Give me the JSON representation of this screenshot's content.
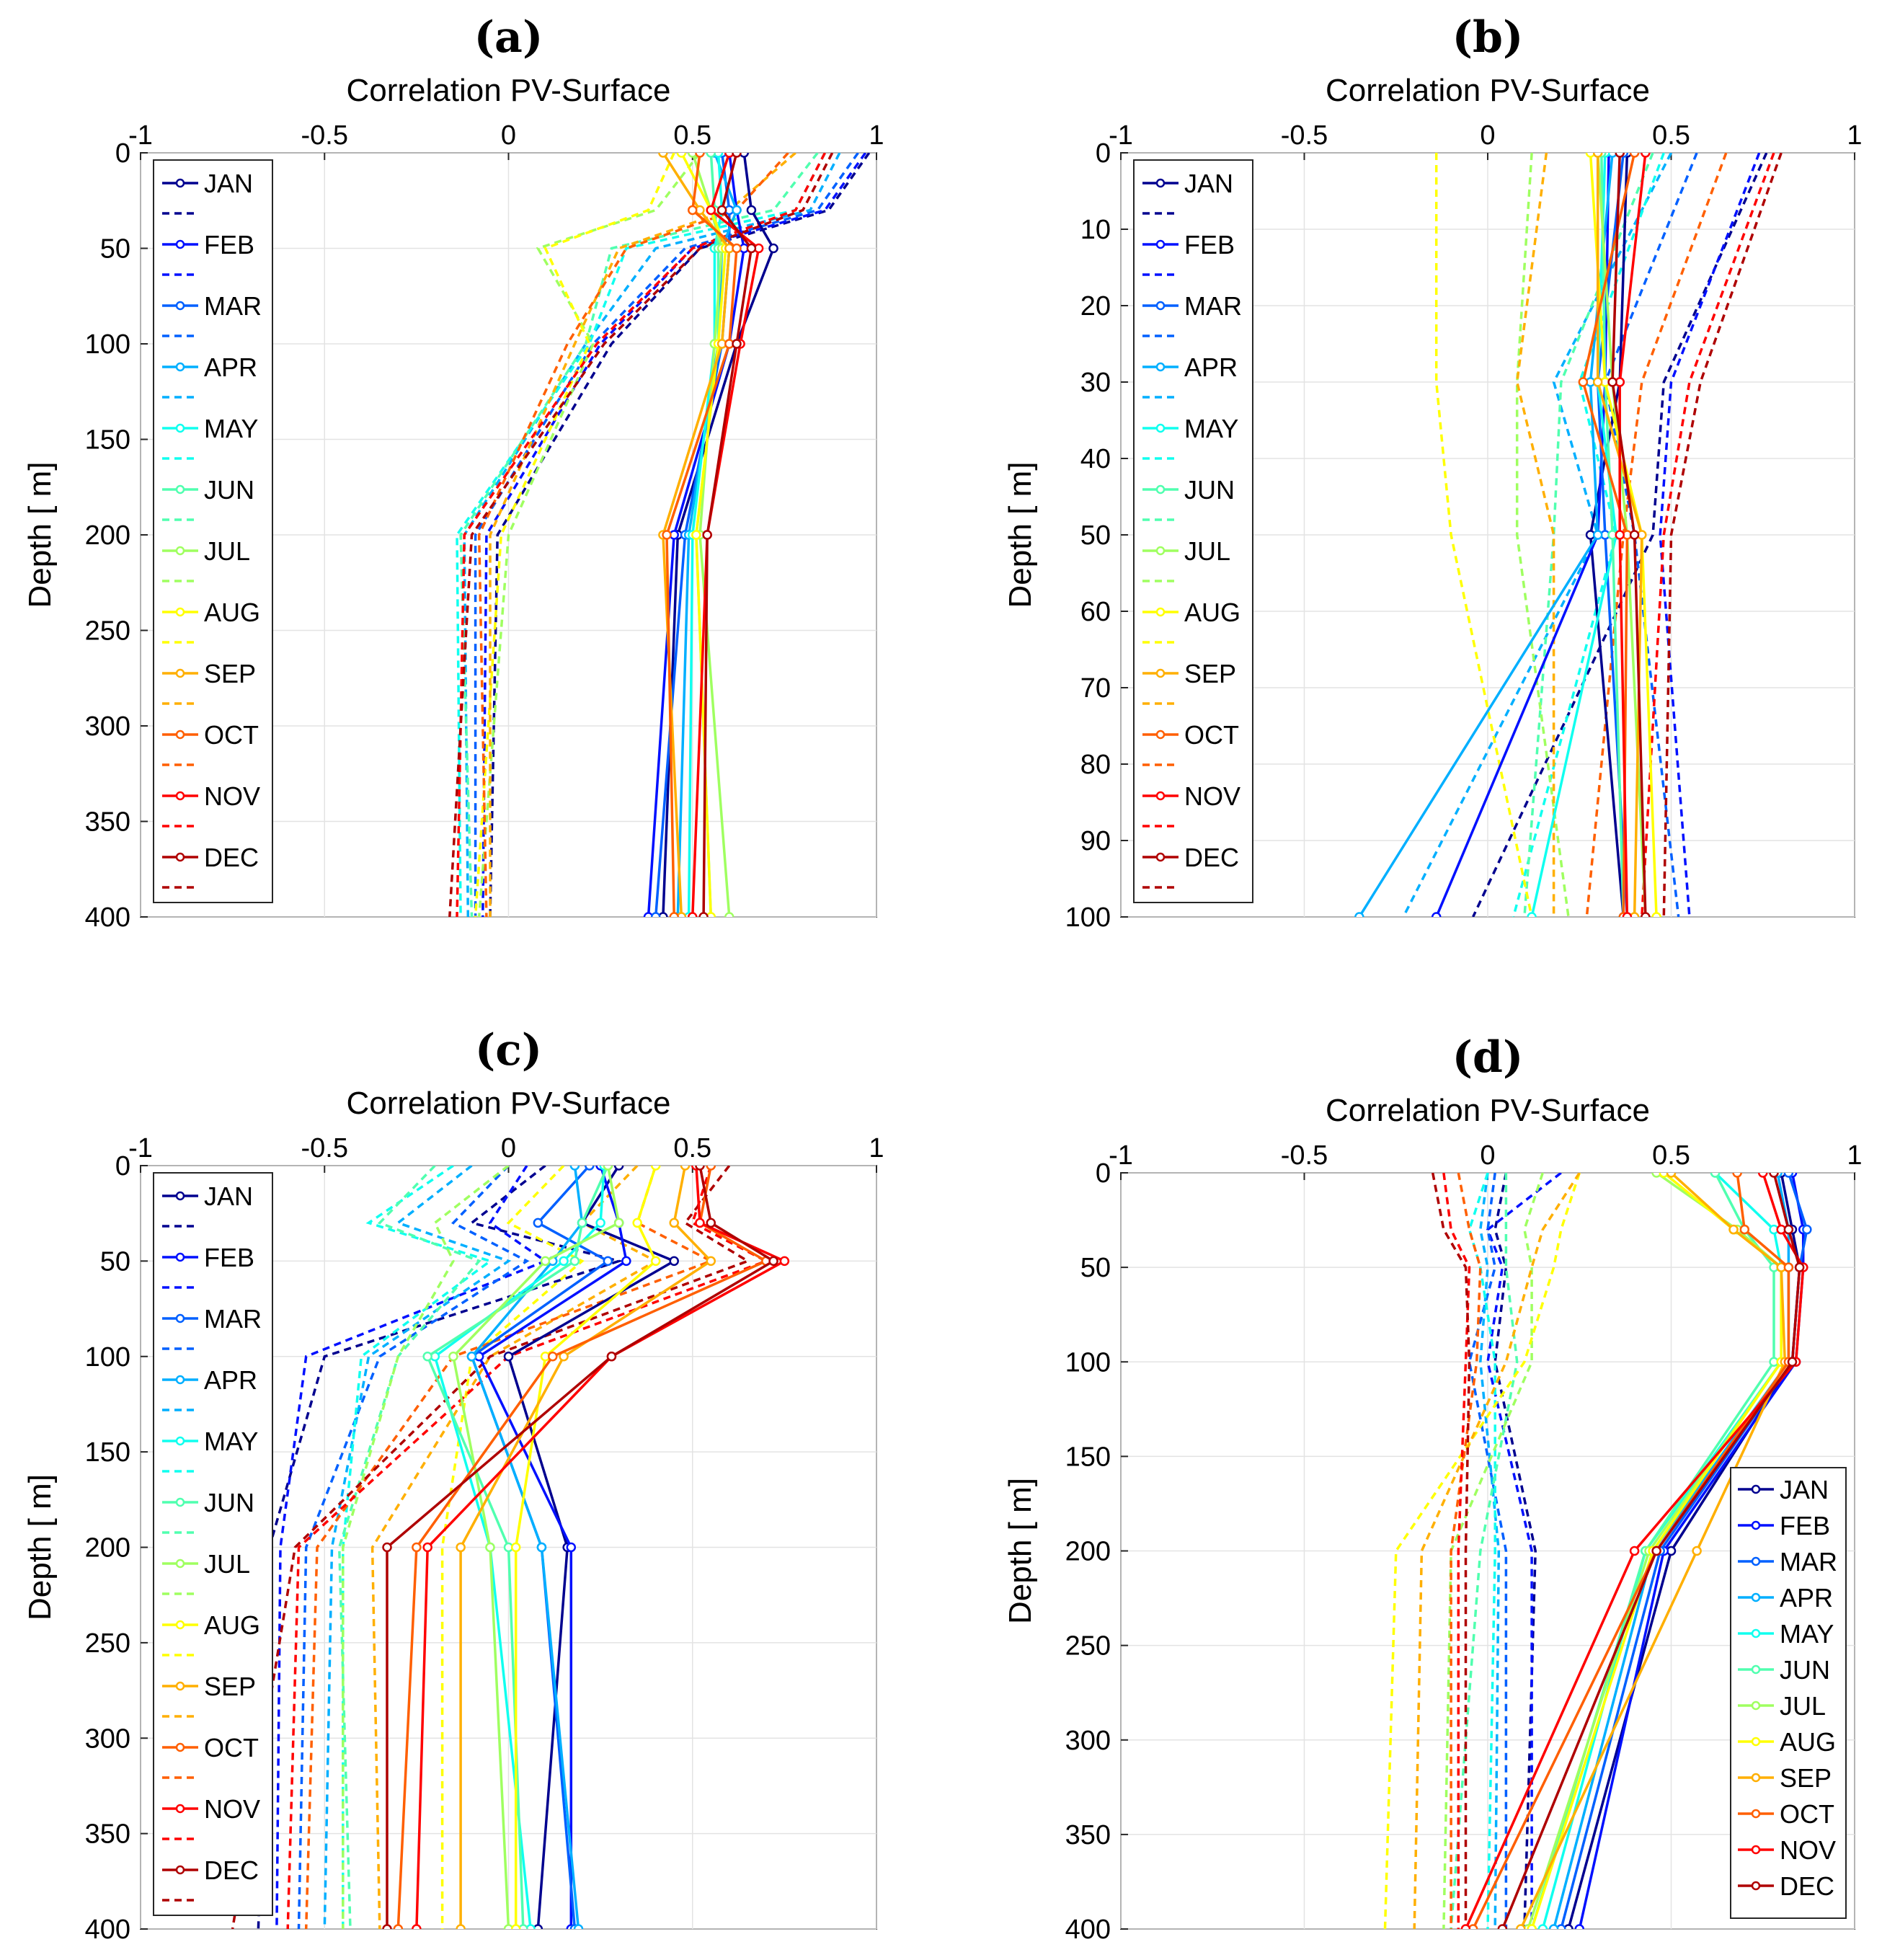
{
  "figure": {
    "colors": {
      "JAN": "#00008f",
      "FEB": "#0010ff",
      "MAR": "#0060ff",
      "APR": "#00afff",
      "MAY": "#10ffef",
      "JUN": "#50ffaf",
      "JUL": "#9fff60",
      "AUG": "#ffff00",
      "SEP": "#ffaf00",
      "OCT": "#ff5f00",
      "NOV": "#ff0000",
      "DEC": "#af0000"
    }
  },
  "chart_data": [
    {
      "panel": "(a)",
      "type": "line",
      "xlabel": "Correlation PV-Surface",
      "ylabel": "Depth [ m]",
      "xlim": [
        -1,
        1
      ],
      "ylim": [
        400,
        0
      ],
      "y_inverted": true,
      "x_axis_position": "top",
      "xticks": [
        "-1",
        "-0.5",
        "0",
        "0.5",
        "1"
      ],
      "yticks": [
        "0",
        "50",
        "100",
        "150",
        "200",
        "250",
        "300",
        "350",
        "400"
      ],
      "grid": true,
      "legend": {
        "position": "left-inside",
        "style": "alternating-solid-dashed",
        "entries": [
          "JAN",
          "FEB",
          "MAR",
          "APR",
          "MAY",
          "JUN",
          "JUL",
          "AUG",
          "SEP",
          "OCT",
          "NOV",
          "DEC"
        ]
      },
      "depths": [
        0,
        30,
        50,
        100,
        200,
        400
      ],
      "series": [
        {
          "name": "JAN",
          "solid": [
            0.64,
            0.66,
            0.72,
            0.62,
            0.46,
            0.42
          ],
          "dashed": [
            0.98,
            0.87,
            0.52,
            0.28,
            -0.03,
            -0.05
          ]
        },
        {
          "name": "FEB",
          "solid": [
            0.6,
            0.62,
            0.64,
            0.6,
            0.45,
            0.38
          ],
          "dashed": [
            0.97,
            0.86,
            0.5,
            0.25,
            -0.06,
            -0.07
          ]
        },
        {
          "name": "MAR",
          "solid": [
            0.58,
            0.6,
            0.6,
            0.58,
            0.48,
            0.4
          ],
          "dashed": [
            0.95,
            0.84,
            0.48,
            0.23,
            -0.09,
            -0.09
          ]
        },
        {
          "name": "APR",
          "solid": [
            0.56,
            0.62,
            0.58,
            0.57,
            0.49,
            0.46
          ],
          "dashed": [
            0.9,
            0.82,
            0.4,
            0.21,
            -0.12,
            -0.11
          ]
        },
        {
          "name": "MAY",
          "solid": [
            0.57,
            0.58,
            0.56,
            0.56,
            0.5,
            0.49
          ],
          "dashed": [
            0.86,
            0.78,
            0.32,
            0.22,
            -0.14,
            -0.13
          ]
        },
        {
          "name": "JUN",
          "solid": [
            0.55,
            0.56,
            0.57,
            0.57,
            0.51,
            0.55
          ],
          "dashed": [
            0.84,
            0.72,
            0.28,
            0.21,
            -0.13,
            -0.1
          ]
        },
        {
          "name": "JUL",
          "solid": [
            0.5,
            0.55,
            0.58,
            0.56,
            0.52,
            0.6
          ],
          "dashed": [
            0.52,
            0.4,
            0.08,
            0.23,
            0.0,
            -0.08
          ]
        },
        {
          "name": "AUG",
          "solid": [
            0.47,
            0.55,
            0.59,
            0.57,
            0.51,
            0.55
          ],
          "dashed": [
            0.45,
            0.38,
            0.1,
            0.22,
            -0.02,
            -0.09
          ]
        },
        {
          "name": "SEP",
          "solid": [
            0.42,
            0.52,
            0.6,
            0.58,
            0.42,
            0.47
          ],
          "dashed": [
            0.78,
            0.6,
            0.3,
            0.18,
            -0.05,
            -0.05
          ]
        },
        {
          "name": "OCT",
          "solid": [
            0.52,
            0.5,
            0.62,
            0.6,
            0.43,
            0.45
          ],
          "dashed": [
            0.76,
            0.62,
            0.32,
            0.16,
            -0.08,
            -0.06
          ]
        },
        {
          "name": "NOV",
          "solid": [
            0.6,
            0.55,
            0.68,
            0.63,
            0.54,
            0.5
          ],
          "dashed": [
            0.86,
            0.78,
            0.5,
            0.24,
            -0.12,
            -0.14
          ]
        },
        {
          "name": "DEC",
          "solid": [
            0.62,
            0.58,
            0.66,
            0.62,
            0.54,
            0.53
          ],
          "dashed": [
            0.88,
            0.8,
            0.52,
            0.26,
            -0.1,
            -0.16
          ]
        }
      ]
    },
    {
      "panel": "(b)",
      "type": "line",
      "xlabel": "Correlation PV-Surface",
      "ylabel": "Depth [ m]",
      "xlim": [
        -1,
        1
      ],
      "ylim": [
        100,
        0
      ],
      "y_inverted": true,
      "x_axis_position": "top",
      "xticks": [
        "-1",
        "-0.5",
        "0",
        "0.5",
        "1"
      ],
      "yticks": [
        "0",
        "10",
        "20",
        "30",
        "40",
        "50",
        "60",
        "70",
        "80",
        "90",
        "100"
      ],
      "grid": true,
      "legend": {
        "position": "left-inside",
        "style": "alternating-solid-dashed",
        "entries": [
          "JAN",
          "FEB",
          "MAR",
          "APR",
          "MAY",
          "JUN",
          "JUL",
          "AUG",
          "SEP",
          "OCT",
          "NOV",
          "DEC"
        ]
      },
      "depths": [
        0,
        30,
        50,
        100
      ],
      "series": [
        {
          "name": "JAN",
          "solid": [
            0.38,
            0.36,
            0.28,
            0.37
          ],
          "dashed": [
            0.76,
            0.48,
            0.45,
            -0.04
          ]
        },
        {
          "name": "FEB",
          "solid": [
            0.33,
            0.32,
            0.3,
            -0.14
          ],
          "dashed": [
            0.74,
            0.5,
            0.47,
            0.55
          ]
        },
        {
          "name": "MAR",
          "solid": [
            0.37,
            0.3,
            0.32,
            0.38
          ],
          "dashed": [
            0.57,
            0.32,
            0.4,
            0.52
          ]
        },
        {
          "name": "APR",
          "solid": [
            0.34,
            0.28,
            0.3,
            -0.35
          ],
          "dashed": [
            0.5,
            0.18,
            0.3,
            -0.23
          ]
        },
        {
          "name": "MAY",
          "solid": [
            0.32,
            0.3,
            0.35,
            0.12
          ],
          "dashed": [
            0.48,
            0.25,
            0.35,
            0.07
          ]
        },
        {
          "name": "JUN",
          "solid": [
            0.31,
            0.32,
            0.34,
            0.37
          ],
          "dashed": [
            0.45,
            0.2,
            0.18,
            0.1
          ]
        },
        {
          "name": "JUL",
          "solid": [
            0.3,
            0.34,
            0.38,
            0.43
          ],
          "dashed": [
            0.12,
            0.08,
            0.08,
            0.22
          ]
        },
        {
          "name": "AUG",
          "solid": [
            0.28,
            0.32,
            0.42,
            0.46
          ],
          "dashed": [
            -0.14,
            -0.14,
            -0.1,
            0.12
          ]
        },
        {
          "name": "SEP",
          "solid": [
            0.3,
            0.3,
            0.42,
            0.4
          ],
          "dashed": [
            0.16,
            0.08,
            0.18,
            0.18
          ]
        },
        {
          "name": "OCT",
          "solid": [
            0.4,
            0.26,
            0.38,
            0.37
          ],
          "dashed": [
            0.65,
            0.42,
            0.37,
            0.27
          ]
        },
        {
          "name": "NOV",
          "solid": [
            0.43,
            0.36,
            0.36,
            0.38
          ],
          "dashed": [
            0.78,
            0.55,
            0.48,
            0.42
          ]
        },
        {
          "name": "DEC",
          "solid": [
            0.36,
            0.34,
            0.4,
            0.43
          ],
          "dashed": [
            0.8,
            0.58,
            0.5,
            0.48
          ]
        }
      ]
    },
    {
      "panel": "(c)",
      "type": "line",
      "xlabel": "Correlation PV-Surface",
      "ylabel": "Depth [ m]",
      "xlim": [
        -1,
        1
      ],
      "ylim": [
        400,
        0
      ],
      "y_inverted": true,
      "x_axis_position": "top",
      "xticks": [
        "-1",
        "-0.5",
        "0",
        "0.5",
        "1"
      ],
      "yticks": [
        "0",
        "50",
        "100",
        "150",
        "200",
        "250",
        "300",
        "350",
        "400"
      ],
      "grid": true,
      "legend": {
        "position": "left-inside",
        "style": "alternating-solid-dashed",
        "entries": [
          "JAN",
          "FEB",
          "MAR",
          "APR",
          "MAY",
          "JUN",
          "JUL",
          "AUG",
          "SEP",
          "OCT",
          "NOV",
          "DEC"
        ]
      },
      "depths": [
        0,
        30,
        50,
        100,
        200,
        400
      ],
      "series": [
        {
          "name": "JAN",
          "solid": [
            0.3,
            0.2,
            0.45,
            0.0,
            0.16,
            0.08
          ],
          "dashed": [
            0.1,
            -0.1,
            0.3,
            -0.5,
            -0.65,
            -0.68
          ]
        },
        {
          "name": "FEB",
          "solid": [
            0.25,
            0.3,
            0.32,
            -0.08,
            0.17,
            0.17
          ],
          "dashed": [
            0.05,
            -0.05,
            0.1,
            -0.55,
            -0.62,
            -0.63
          ]
        },
        {
          "name": "MAR",
          "solid": [
            0.22,
            0.08,
            0.27,
            -0.1,
            0.09,
            0.18
          ],
          "dashed": [
            0.0,
            -0.15,
            0.05,
            -0.35,
            -0.55,
            -0.57
          ]
        },
        {
          "name": "APR",
          "solid": [
            0.18,
            0.2,
            0.12,
            -0.1,
            0.09,
            0.19
          ],
          "dashed": [
            -0.1,
            -0.3,
            0.0,
            -0.38,
            -0.48,
            -0.5
          ]
        },
        {
          "name": "MAY",
          "solid": [
            0.26,
            0.25,
            0.15,
            -0.2,
            -0.05,
            0.06
          ],
          "dashed": [
            -0.15,
            -0.38,
            -0.05,
            -0.4,
            -0.45,
            -0.45
          ]
        },
        {
          "name": "JUN",
          "solid": [
            0.27,
            0.2,
            0.18,
            -0.22,
            0.0,
            0.04
          ],
          "dashed": [
            -0.2,
            -0.35,
            -0.08,
            -0.3,
            -0.46,
            -0.43
          ]
        },
        {
          "name": "JUL",
          "solid": [
            0.27,
            0.3,
            0.1,
            -0.15,
            -0.05,
            0.0
          ],
          "dashed": [
            0.0,
            -0.2,
            -0.15,
            -0.3,
            -0.45,
            -0.45
          ]
        },
        {
          "name": "AUG",
          "solid": [
            0.4,
            0.35,
            0.4,
            0.1,
            0.02,
            0.02
          ],
          "dashed": [
            0.15,
            0.0,
            0.2,
            -0.1,
            -0.18,
            -0.18
          ]
        },
        {
          "name": "SEP",
          "solid": [
            0.48,
            0.45,
            0.55,
            0.15,
            -0.13,
            -0.13
          ],
          "dashed": [
            0.35,
            0.2,
            0.4,
            -0.05,
            -0.37,
            -0.35
          ]
        },
        {
          "name": "OCT",
          "solid": [
            0.55,
            0.52,
            0.7,
            0.12,
            -0.25,
            -0.3
          ],
          "dashed": [
            0.4,
            0.35,
            0.55,
            -0.15,
            -0.52,
            -0.55
          ]
        },
        {
          "name": "NOV",
          "solid": [
            0.51,
            0.52,
            0.75,
            0.28,
            -0.22,
            -0.25
          ],
          "dashed": [
            0.55,
            0.5,
            0.7,
            0.0,
            -0.57,
            -0.6
          ]
        },
        {
          "name": "DEC",
          "solid": [
            0.52,
            0.55,
            0.72,
            0.28,
            -0.33,
            -0.33
          ],
          "dashed": [
            0.6,
            0.48,
            0.65,
            -0.05,
            -0.58,
            -0.75
          ]
        }
      ]
    },
    {
      "panel": "(d)",
      "type": "line",
      "xlabel": "Correlation PV-Surface",
      "ylabel": "Depth [ m]",
      "xlim": [
        -1,
        1
      ],
      "ylim": [
        400,
        0
      ],
      "y_inverted": true,
      "x_axis_position": "top",
      "xticks": [
        "-1",
        "-0.5",
        "0",
        "0.5",
        "1"
      ],
      "yticks": [
        "0",
        "50",
        "100",
        "150",
        "200",
        "250",
        "300",
        "350",
        "400"
      ],
      "grid": true,
      "legend": {
        "position": "bottom-right-inside",
        "style": "solid-only",
        "entries": [
          "JAN",
          "FEB",
          "MAR",
          "APR",
          "MAY",
          "JUN",
          "JUL",
          "AUG",
          "SEP",
          "OCT",
          "NOV",
          "DEC"
        ]
      },
      "depths": [
        0,
        30,
        50,
        100,
        200,
        400
      ],
      "series": [
        {
          "name": "JAN",
          "solid": [
            0.8,
            0.83,
            0.85,
            0.83,
            0.5,
            0.22
          ],
          "dashed": [
            0.05,
            0.02,
            0.05,
            0.02,
            0.13,
            0.1
          ]
        },
        {
          "name": "FEB",
          "solid": [
            0.83,
            0.86,
            0.86,
            0.84,
            0.48,
            0.25
          ],
          "dashed": [
            0.2,
            0.0,
            0.04,
            0.0,
            0.12,
            0.12
          ]
        },
        {
          "name": "MAR",
          "solid": [
            0.82,
            0.87,
            0.85,
            0.83,
            0.47,
            0.2
          ],
          "dashed": [
            0.02,
            0.0,
            0.02,
            -0.05,
            0.05,
            0.05
          ]
        },
        {
          "name": "APR",
          "solid": [
            0.79,
            0.82,
            0.82,
            0.82,
            0.45,
            0.18
          ],
          "dashed": [
            0.0,
            -0.02,
            0.0,
            -0.02,
            0.03,
            0.02
          ]
        },
        {
          "name": "MAY",
          "solid": [
            0.62,
            0.78,
            0.8,
            0.8,
            0.43,
            0.15
          ],
          "dashed": [
            0.0,
            -0.05,
            -0.02,
            0.02,
            0.02,
            0.0
          ]
        },
        {
          "name": "JUN",
          "solid": [
            0.62,
            0.7,
            0.78,
            0.78,
            0.43,
            0.12
          ],
          "dashed": [
            0.05,
            0.05,
            0.05,
            0.08,
            -0.02,
            -0.1
          ]
        },
        {
          "name": "JUL",
          "solid": [
            0.46,
            0.68,
            0.8,
            0.8,
            0.44,
            0.11
          ],
          "dashed": [
            0.15,
            0.1,
            0.12,
            0.12,
            -0.1,
            -0.12
          ]
        },
        {
          "name": "AUG",
          "solid": [
            0.48,
            0.67,
            0.8,
            0.8,
            0.45,
            0.12
          ],
          "dashed": [
            0.25,
            0.2,
            0.18,
            0.1,
            -0.25,
            -0.28
          ]
        },
        {
          "name": "SEP",
          "solid": [
            0.5,
            0.67,
            0.8,
            0.81,
            0.57,
            0.09
          ],
          "dashed": [
            0.25,
            0.15,
            0.12,
            0.05,
            -0.18,
            -0.2
          ]
        },
        {
          "name": "OCT",
          "solid": [
            0.68,
            0.7,
            0.82,
            0.82,
            0.46,
            -0.04
          ],
          "dashed": [
            -0.08,
            -0.05,
            -0.02,
            -0.03,
            -0.1,
            -0.1
          ]
        },
        {
          "name": "NOV",
          "solid": [
            0.75,
            0.8,
            0.86,
            0.84,
            0.4,
            -0.06
          ],
          "dashed": [
            -0.12,
            -0.1,
            -0.05,
            -0.06,
            -0.08,
            -0.08
          ]
        },
        {
          "name": "DEC",
          "solid": [
            0.78,
            0.82,
            0.85,
            0.83,
            0.46,
            0.04
          ],
          "dashed": [
            -0.15,
            -0.12,
            -0.06,
            -0.05,
            -0.06,
            -0.06
          ]
        }
      ]
    }
  ]
}
